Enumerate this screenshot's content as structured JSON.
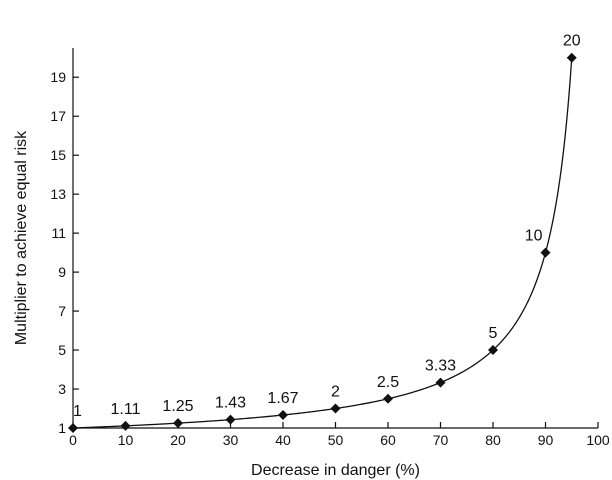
{
  "chart_data": {
    "type": "line",
    "title": "",
    "xlabel": "Decrease in danger (%)",
    "ylabel": "Multiplier to achieve equal risk",
    "xlim": [
      0,
      100
    ],
    "ylim": [
      1,
      20.5
    ],
    "xticks": [
      0,
      10,
      20,
      30,
      40,
      50,
      60,
      70,
      80,
      90,
      100
    ],
    "yticks": [
      1,
      3,
      5,
      7,
      9,
      11,
      13,
      15,
      17,
      19
    ],
    "grid": false,
    "marker": "diamond",
    "series": [
      {
        "x": [
          0,
          10,
          20,
          30,
          40,
          50,
          60,
          70,
          80,
          90,
          95
        ],
        "y": [
          1,
          1.11,
          1.25,
          1.43,
          1.67,
          2,
          2.5,
          3.33,
          5,
          10,
          20
        ],
        "labels": [
          "1",
          "1.11",
          "1.25",
          "1.43",
          "1.67",
          "2",
          "2.5",
          "3.33",
          "5",
          "10",
          "20"
        ]
      }
    ]
  }
}
